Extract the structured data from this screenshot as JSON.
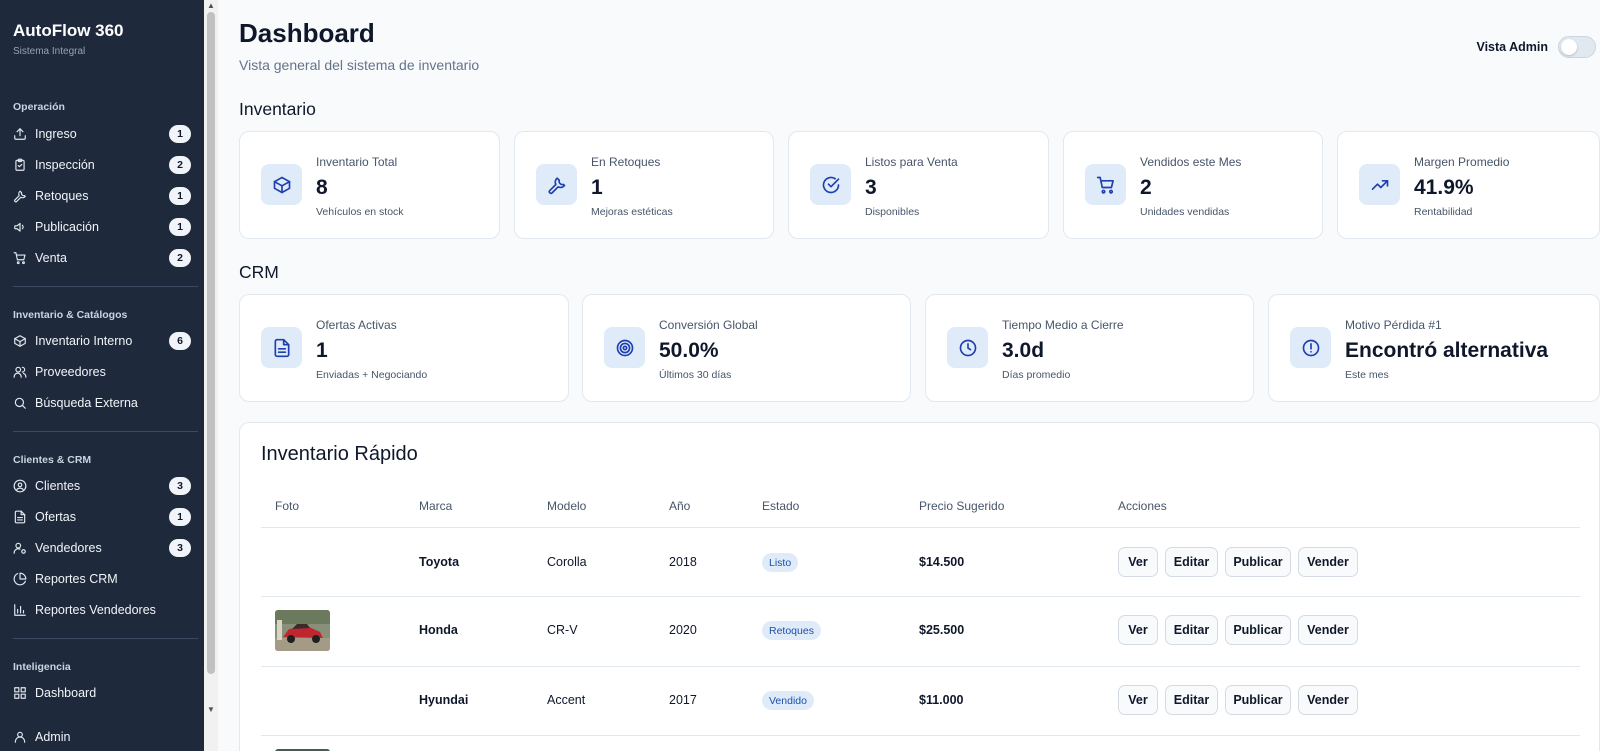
{
  "brand": {
    "title": "AutoFlow 360",
    "subtitle": "Sistema Integral"
  },
  "sidebar": {
    "sections": [
      {
        "label": "Operación"
      },
      {
        "label": "Inventario & Catálogos"
      },
      {
        "label": "Clientes & CRM"
      },
      {
        "label": "Inteligencia"
      }
    ],
    "items": [
      {
        "label": "Ingreso",
        "badge": "1",
        "icon": "upload-icon"
      },
      {
        "label": "Inspección",
        "badge": "2",
        "icon": "clipboard-icon"
      },
      {
        "label": "Retoques",
        "badge": "1",
        "icon": "wrench-icon"
      },
      {
        "label": "Publicación",
        "badge": "1",
        "icon": "megaphone-icon"
      },
      {
        "label": "Venta",
        "badge": "2",
        "icon": "cart-icon"
      },
      {
        "label": "Inventario Interno",
        "badge": "6",
        "icon": "box-icon"
      },
      {
        "label": "Proveedores",
        "badge": "",
        "icon": "users-icon"
      },
      {
        "label": "Búsqueda Externa",
        "badge": "",
        "icon": "search-icon"
      },
      {
        "label": "Clientes",
        "badge": "3",
        "icon": "user-circle-icon"
      },
      {
        "label": "Ofertas",
        "badge": "1",
        "icon": "file-icon"
      },
      {
        "label": "Vendedores",
        "badge": "3",
        "icon": "user-cog-icon"
      },
      {
        "label": "Reportes CRM",
        "badge": "",
        "icon": "pie-chart-icon"
      },
      {
        "label": "Reportes Vendedores",
        "badge": "",
        "icon": "bar-chart-icon"
      },
      {
        "label": "Dashboard",
        "badge": "",
        "icon": "grid-icon"
      },
      {
        "label": "Admin",
        "badge": "",
        "icon": "user-icon"
      }
    ]
  },
  "header": {
    "title": "Dashboard",
    "subtitle": "Vista general del sistema de inventario",
    "admin_toggle_label": "Vista Admin",
    "admin_toggle_on": false
  },
  "inventory_section": {
    "title": "Inventario"
  },
  "inventory_cards": [
    {
      "label": "Inventario Total",
      "value": "8",
      "sub": "Vehículos en stock",
      "icon": "box-icon"
    },
    {
      "label": "En Retoques",
      "value": "1",
      "sub": "Mejoras estéticas",
      "icon": "wrench-icon"
    },
    {
      "label": "Listos para Venta",
      "value": "3",
      "sub": "Disponibles",
      "icon": "check-circle-icon"
    },
    {
      "label": "Vendidos este Mes",
      "value": "2",
      "sub": "Unidades vendidas",
      "icon": "cart-icon"
    },
    {
      "label": "Margen Promedio",
      "value": "41.9%",
      "sub": "Rentabilidad",
      "icon": "trending-up-icon"
    }
  ],
  "crm_section": {
    "title": "CRM"
  },
  "crm_cards": [
    {
      "label": "Ofertas Activas",
      "value": "1",
      "sub": "Enviadas + Negociando",
      "icon": "file-icon"
    },
    {
      "label": "Conversión Global",
      "value": "50.0%",
      "sub": "Últimos 30 días",
      "icon": "target-icon"
    },
    {
      "label": "Tiempo Medio a Cierre",
      "value": "3.0d",
      "sub": "Días promedio",
      "icon": "clock-icon"
    },
    {
      "label": "Motivo Pérdida #1",
      "value": "Encontró alternativa",
      "sub": "Este mes",
      "icon": "alert-circle-icon"
    }
  ],
  "quick_inventory": {
    "title": "Inventario Rápido",
    "columns": [
      "Foto",
      "Marca",
      "Modelo",
      "Año",
      "Estado",
      "Precio Sugerido",
      "Acciones"
    ],
    "rows": [
      {
        "photo": false,
        "brand": "Toyota",
        "model": "Corolla",
        "year": "2018",
        "status": "Listo",
        "price": "$14.500"
      },
      {
        "photo": true,
        "brand": "Honda",
        "model": "CR-V",
        "year": "2020",
        "status": "Retoques",
        "price": "$25.500"
      },
      {
        "photo": false,
        "brand": "Hyundai",
        "model": "Accent",
        "year": "2017",
        "status": "Vendido",
        "price": "$11.000"
      }
    ],
    "actions": [
      "Ver",
      "Editar",
      "Publicar",
      "Vender"
    ]
  }
}
